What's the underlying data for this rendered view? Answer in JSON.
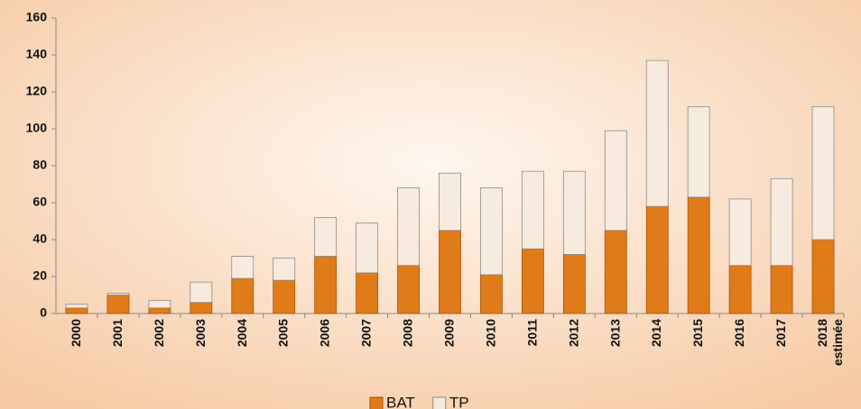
{
  "chart_data": {
    "type": "stacked_bar",
    "categories": [
      "2000",
      "2001",
      "2002",
      "2003",
      "2004",
      "2005",
      "2006",
      "2007",
      "2008",
      "2009",
      "2010",
      "2011",
      "2012",
      "2013",
      "2014",
      "2015",
      "2016",
      "2017",
      "2018 estimée"
    ],
    "series": [
      {
        "name": "BAT",
        "color": "#e07b1a",
        "values": [
          3,
          10,
          3,
          6,
          19,
          18,
          31,
          22,
          26,
          45,
          21,
          35,
          32,
          45,
          58,
          63,
          26,
          26,
          40
        ]
      },
      {
        "name": "TP",
        "color": "#f7ebe0",
        "values": [
          2,
          1,
          4,
          11,
          12,
          12,
          21,
          27,
          42,
          31,
          47,
          42,
          45,
          54,
          79,
          49,
          36,
          47,
          72
        ]
      }
    ],
    "ylim": [
      0,
      160
    ],
    "yticks": [
      0,
      20,
      40,
      60,
      80,
      100,
      120,
      140,
      160
    ],
    "legend": "bottom"
  }
}
